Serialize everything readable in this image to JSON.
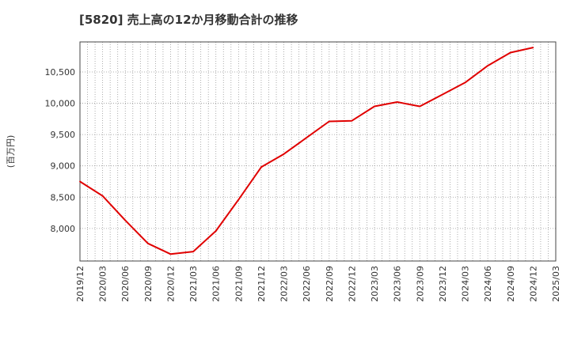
{
  "chart_data": {
    "type": "line",
    "title": "[5820]  売上高の12か月移動合計の推移",
    "xlabel": "",
    "ylabel": "(百万円)",
    "x": [
      "2019/12",
      "2020/03",
      "2020/06",
      "2020/09",
      "2020/12",
      "2021/03",
      "2021/06",
      "2021/09",
      "2021/12",
      "2022/03",
      "2022/06",
      "2022/09",
      "2022/12",
      "2023/03",
      "2023/06",
      "2023/09",
      "2023/12",
      "2024/03",
      "2024/06",
      "2024/09",
      "2024/12",
      "2025/03"
    ],
    "ylim": [
      7480,
      10980
    ],
    "y_ticks": [
      8000,
      8500,
      9000,
      9500,
      10000,
      10500
    ],
    "y_tick_labels": [
      "8,000",
      "8,500",
      "9,000",
      "9,500",
      "10,000",
      "10,500"
    ],
    "grid": true,
    "series": [
      {
        "name": "売上高の12か月移動合計",
        "color": "#e00000",
        "values": [
          8750,
          8520,
          8130,
          7760,
          7590,
          7630,
          7960,
          8460,
          8980,
          9190,
          9450,
          9710,
          9720,
          9950,
          10020,
          9950,
          10140,
          10330,
          10600,
          10810,
          10890,
          null
        ]
      }
    ]
  }
}
